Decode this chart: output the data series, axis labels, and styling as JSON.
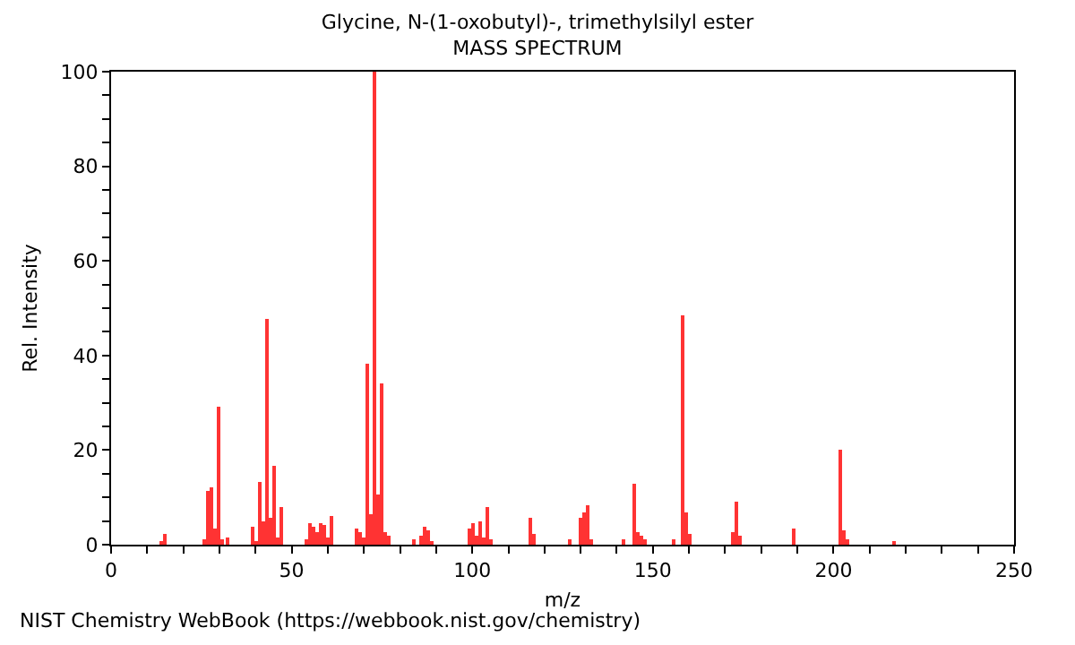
{
  "chart_data": {
    "type": "bar",
    "title": "Glycine, N-(1-oxobutyl)-, trimethylsilyl ester",
    "subtitle": "MASS SPECTRUM",
    "xlabel": "m/z",
    "ylabel": "Rel. Intensity",
    "annotations": [
      "NIST Chemistry WebBook (https://webbook.nist.gov/chemistry)"
    ],
    "x": [
      14,
      15,
      26,
      27,
      28,
      29,
      30,
      31,
      32,
      39,
      40,
      41,
      42,
      43,
      44,
      45,
      46,
      47,
      54,
      55,
      56,
      57,
      58,
      59,
      60,
      61,
      68,
      69,
      70,
      71,
      72,
      73,
      74,
      75,
      76,
      77,
      84,
      86,
      87,
      88,
      89,
      99,
      100,
      101,
      102,
      103,
      104,
      105,
      116,
      117,
      127,
      130,
      131,
      132,
      133,
      142,
      145,
      146,
      147,
      148,
      156,
      158,
      159,
      160,
      172,
      173,
      174,
      189,
      202,
      203,
      204,
      217
    ],
    "series": [
      {
        "color": "#ff3333",
        "values": [
          0.6,
          2.4,
          1.1,
          11.4,
          12.1,
          3.4,
          29.2,
          1.1,
          1.4,
          3.8,
          0.9,
          13.3,
          4.9,
          47.7,
          5.5,
          16.7,
          1.4,
          8.0,
          1.1,
          4.5,
          3.8,
          2.7,
          4.5,
          4.0,
          1.4,
          6.0,
          3.4,
          2.7,
          1.4,
          38.3,
          6.4,
          100,
          10.6,
          34.1,
          2.7,
          1.8,
          1.1,
          1.8,
          3.8,
          3.0,
          0.8,
          3.4,
          4.5,
          1.8,
          4.9,
          1.4,
          8.0,
          1.1,
          5.6,
          2.1,
          1.1,
          5.6,
          6.8,
          8.3,
          1.1,
          1.1,
          13.0,
          2.7,
          1.8,
          1.1,
          1.1,
          48.6,
          6.8,
          2.1,
          2.7,
          9.1,
          1.8,
          3.4,
          20.2,
          3.2,
          1.1,
          0.8
        ]
      }
    ],
    "xlim": [
      0,
      250
    ],
    "xticks": [
      0,
      {
        "value": 10,
        "label": null
      },
      {
        "value": 20,
        "label": null
      },
      {
        "value": 30,
        "label": null
      },
      {
        "value": 40,
        "label": null
      },
      50,
      {
        "value": 60,
        "label": null
      },
      {
        "value": 70,
        "label": null
      },
      {
        "value": 80,
        "label": null
      },
      {
        "value": 90,
        "label": null
      },
      100,
      {
        "value": 110,
        "label": null
      },
      {
        "value": 120,
        "label": null
      },
      {
        "value": 130,
        "label": null
      },
      {
        "value": 140,
        "label": null
      },
      150,
      {
        "value": 160,
        "label": null
      },
      {
        "value": 170,
        "label": null
      },
      {
        "value": 180,
        "label": null
      },
      {
        "value": 190,
        "label": null
      },
      200,
      {
        "value": 210,
        "label": null
      },
      {
        "value": 220,
        "label": null
      },
      {
        "value": 230,
        "label": null
      },
      {
        "value": 240,
        "label": null
      },
      250
    ],
    "ylim": [
      0,
      100
    ],
    "yticks": [
      0,
      {
        "value": 5,
        "label": null
      },
      {
        "value": 10,
        "label": null
      },
      {
        "value": 15,
        "label": null
      },
      20,
      {
        "value": 25,
        "label": null
      },
      {
        "value": 30,
        "label": null
      },
      {
        "value": 35,
        "label": null
      },
      40,
      {
        "value": 45,
        "label": null
      },
      {
        "value": 50,
        "label": null
      },
      {
        "value": 55,
        "label": null
      },
      60,
      {
        "value": 65,
        "label": null
      },
      {
        "value": 70,
        "label": null
      },
      {
        "value": 75,
        "label": null
      },
      80,
      {
        "value": 85,
        "label": null
      },
      {
        "value": 90,
        "label": null
      },
      {
        "value": 95,
        "label": null
      },
      100
    ],
    "grid": false
  }
}
